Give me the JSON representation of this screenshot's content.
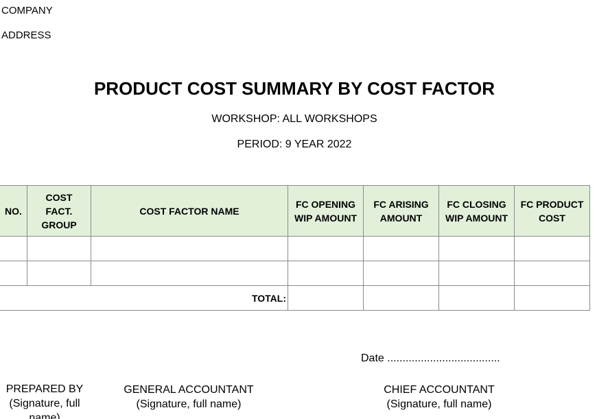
{
  "header": {
    "company": "COMPANY",
    "address": "ADDRESS"
  },
  "report": {
    "title": "PRODUCT COST SUMMARY BY COST FACTOR",
    "workshop": "WORKSHOP: ALL WORKSHOPS",
    "period": "PERIOD: 9 YEAR 2022"
  },
  "table": {
    "columns": [
      "NO.",
      "COST FACT. GROUP",
      "COST FACTOR NAME",
      "FC OPENING WIP AMOUNT",
      "FC ARISING AMOUNT",
      "FC CLOSING WIP AMOUNT",
      "FC PRODUCT COST"
    ],
    "rows": [
      [
        "",
        "",
        "",
        "",
        "",
        "",
        ""
      ],
      [
        "",
        "",
        "",
        "",
        "",
        "",
        ""
      ]
    ],
    "total_label": "TOTAL:",
    "totals": [
      "",
      "",
      "",
      ""
    ],
    "header_bg": "#e2f0d9"
  },
  "footer": {
    "date_line": "Date .....................................",
    "signatures": [
      {
        "title": "PREPARED BY",
        "note": "(Signature, full name)"
      },
      {
        "title": "GENERAL ACCOUNTANT",
        "note": "(Signature, full name)"
      },
      {
        "title": "CHIEF ACCOUNTANT",
        "note": "(Signature, full name)"
      }
    ]
  }
}
